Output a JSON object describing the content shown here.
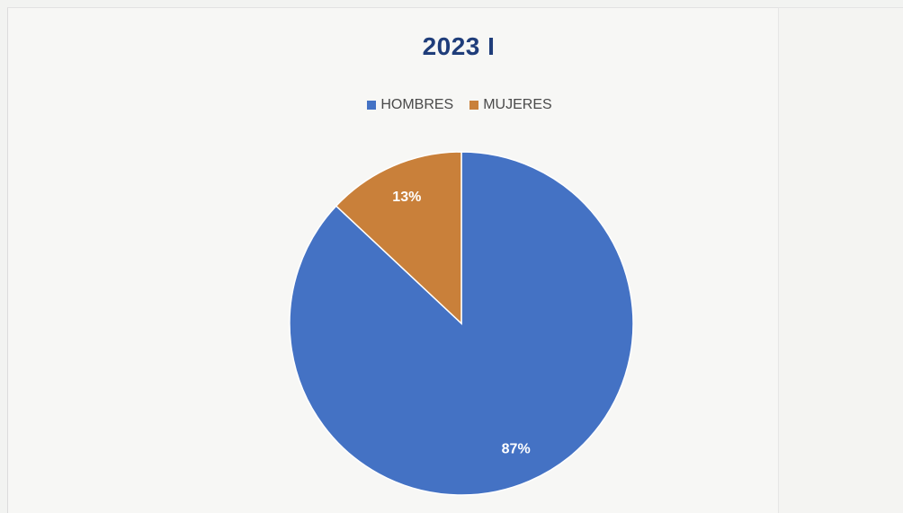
{
  "chart_data": {
    "type": "pie",
    "title": "2023 I",
    "categories": [
      "HOMBRES",
      "MUJERES"
    ],
    "values": [
      87,
      13
    ],
    "labels": [
      "87%",
      "13%"
    ],
    "colors": [
      "#4472c4",
      "#c9803a"
    ],
    "legend_position": "top"
  }
}
